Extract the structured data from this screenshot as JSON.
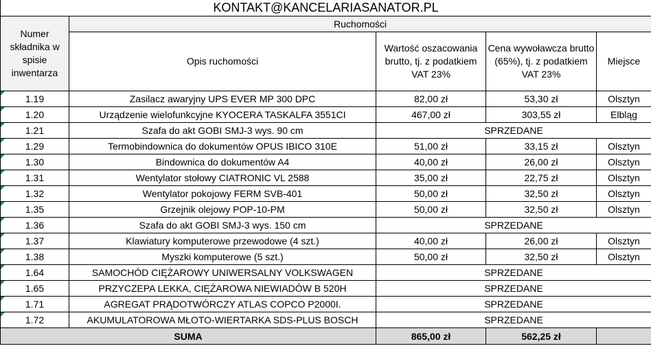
{
  "title": "KONTAKT@KANCELARIASANATOR.PL",
  "header": {
    "number": "Numer składnika w spisie inwentarza",
    "group": "Ruchomości",
    "columns": [
      "Opis ruchomości",
      "Wartość oszacowania brutto, tj. z podatkiem VAT 23%",
      "Cena wywoławcza brutto (65%), tj. z podatkiem VAT 23%",
      "Miejsce"
    ]
  },
  "rows": [
    {
      "number": "1.19",
      "description": "Zasilacz awaryjny UPS EVER MP 300 DPC",
      "value": "82,00 zł",
      "price": "53,30 zł",
      "place": "Olsztyn"
    },
    {
      "number": "1.20",
      "description": "Urządzenie wielofunkcyjne KYOCERA TASKALFA 3551CI",
      "value": "467,00 zł",
      "price": "303,55 zł",
      "place": "Elbląg"
    },
    {
      "number": "1.21",
      "description": "Szafa do akt GOBI SMJ-3 wys. 90 cm",
      "status": "SPRZEDANE"
    },
    {
      "number": "1.29",
      "description": "Termobindownica do dokumentów OPUS IBICO 310E",
      "value": "51,00 zł",
      "price": "33,15 zł",
      "place": "Olsztyn"
    },
    {
      "number": "1.30",
      "description": "Bindownica do dokumentów A4",
      "value": "40,00 zł",
      "price": "26,00 zł",
      "place": "Olsztyn"
    },
    {
      "number": "1.31",
      "description": "Wentylator stołowy CIATRONIC VL 2588",
      "value": "35,00 zł",
      "price": "22,75 zł",
      "place": "Olsztyn"
    },
    {
      "number": "1.32",
      "description": "Wentylator pokojowy FERM SVB-401",
      "value": "50,00 zł",
      "price": "32,50 zł",
      "place": "Olsztyn"
    },
    {
      "number": "1.35",
      "description": "Grzejnik olejowy POP-10-PM",
      "value": "50,00 zł",
      "price": "32,50 zł",
      "place": "Olsztyn"
    },
    {
      "number": "1.36",
      "description": "Szafa do akt GOBI SMJ-3 wys. 150 cm",
      "status": "SPRZEDANE"
    },
    {
      "number": "1.37",
      "description": "Klawiatury komputerowe przewodowe (4 szt.)",
      "value": "40,00 zł",
      "price": "26,00 zł",
      "place": "Olsztyn"
    },
    {
      "number": "1.38",
      "description": "Myszki komputerowe (5 szt.)",
      "value": "50,00 zł",
      "price": "32,50 zł",
      "place": "Olsztyn"
    },
    {
      "number": "1.64",
      "description": "SAMOCHÓD CIĘŻAROWY UNIWERSALNY VOLKSWAGEN",
      "status": "SPRZEDANE"
    },
    {
      "number": "1.65",
      "description": "PRZYCZEPA LEKKA, CIĘŻAROWA NIEWIADÓW B 520H",
      "status": "SPRZEDANE"
    },
    {
      "number": "1.71",
      "description": "AGREGAT PRĄDOTWÓRCZY ATLAS COPCO P2000I.",
      "status": "SPRZEDANE"
    },
    {
      "number": "1.72",
      "description": "AKUMULATOROWA MŁOTO-WIERTARKA SDS-PLUS BOSCH",
      "status": "SPRZEDANE"
    }
  ],
  "total": {
    "label": "SUMA",
    "value": "865,00 zł",
    "price": "562,25 zł"
  }
}
